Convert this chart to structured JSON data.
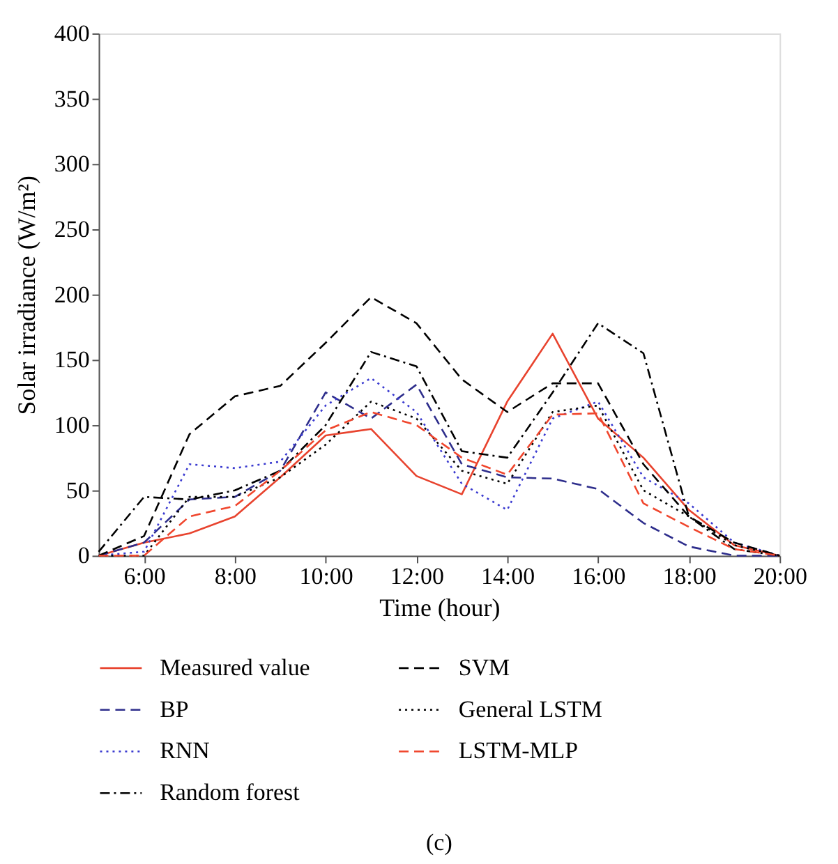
{
  "chart_data": {
    "type": "line",
    "xlabel": "Time (hour)",
    "ylabel": "Solar irradiance (W/m²)",
    "x": [
      5,
      6,
      7,
      8,
      9,
      10,
      11,
      12,
      13,
      14,
      15,
      16,
      17,
      18,
      19,
      20
    ],
    "xlim": [
      5,
      20
    ],
    "xticks": [
      {
        "value": 6,
        "label": "6:00"
      },
      {
        "value": 8,
        "label": "8:00"
      },
      {
        "value": 10,
        "label": "10:00"
      },
      {
        "value": 12,
        "label": "12:00"
      },
      {
        "value": 14,
        "label": "14:00"
      },
      {
        "value": 16,
        "label": "16:00"
      },
      {
        "value": 18,
        "label": "18:00"
      },
      {
        "value": 20,
        "label": "20:00"
      }
    ],
    "ylim": [
      0,
      400
    ],
    "yticks": [
      0,
      50,
      100,
      150,
      200,
      250,
      300,
      350,
      400
    ],
    "grid": false,
    "legend": "bottom",
    "marker": "none",
    "series": [
      {
        "name": "Measured value",
        "color": "#e8432e",
        "line_style": "solid",
        "values": [
          0,
          10,
          17,
          30,
          60,
          92,
          97,
          61,
          47,
          118,
          170,
          105,
          75,
          35,
          8,
          0
        ]
      },
      {
        "name": "BP",
        "color": "#2e2e8c",
        "line_style": "dashed",
        "values": [
          0,
          10,
          43,
          45,
          65,
          125,
          105,
          131,
          70,
          60,
          59,
          51,
          25,
          7,
          0,
          0
        ]
      },
      {
        "name": "RNN",
        "color": "#3a3ad0",
        "line_style": "dotted",
        "values": [
          0,
          3,
          70,
          67,
          72,
          115,
          136,
          110,
          55,
          35,
          105,
          118,
          60,
          40,
          10,
          0
        ]
      },
      {
        "name": "Random forest",
        "color": "#000000",
        "line_style": "dashdot",
        "values": [
          3,
          45,
          43,
          50,
          65,
          100,
          156,
          145,
          80,
          75,
          125,
          178,
          155,
          30,
          5,
          0
        ]
      },
      {
        "name": "SVM",
        "color": "#000000",
        "line_style": "dashed",
        "values": [
          0,
          15,
          93,
          122,
          130,
          163,
          198,
          178,
          135,
          110,
          132,
          132,
          70,
          30,
          10,
          0
        ]
      },
      {
        "name": "General LSTM",
        "color": "#000000",
        "line_style": "dotted",
        "values": [
          0,
          0,
          45,
          45,
          60,
          85,
          118,
          105,
          65,
          55,
          110,
          115,
          50,
          30,
          8,
          0
        ]
      },
      {
        "name": "LSTM-MLP",
        "color": "#f0462d",
        "line_style": "dashed",
        "values": [
          0,
          0,
          30,
          38,
          65,
          96,
          110,
          100,
          75,
          62,
          108,
          109,
          40,
          22,
          5,
          0
        ]
      }
    ],
    "annotations": [
      "(c)"
    ]
  }
}
